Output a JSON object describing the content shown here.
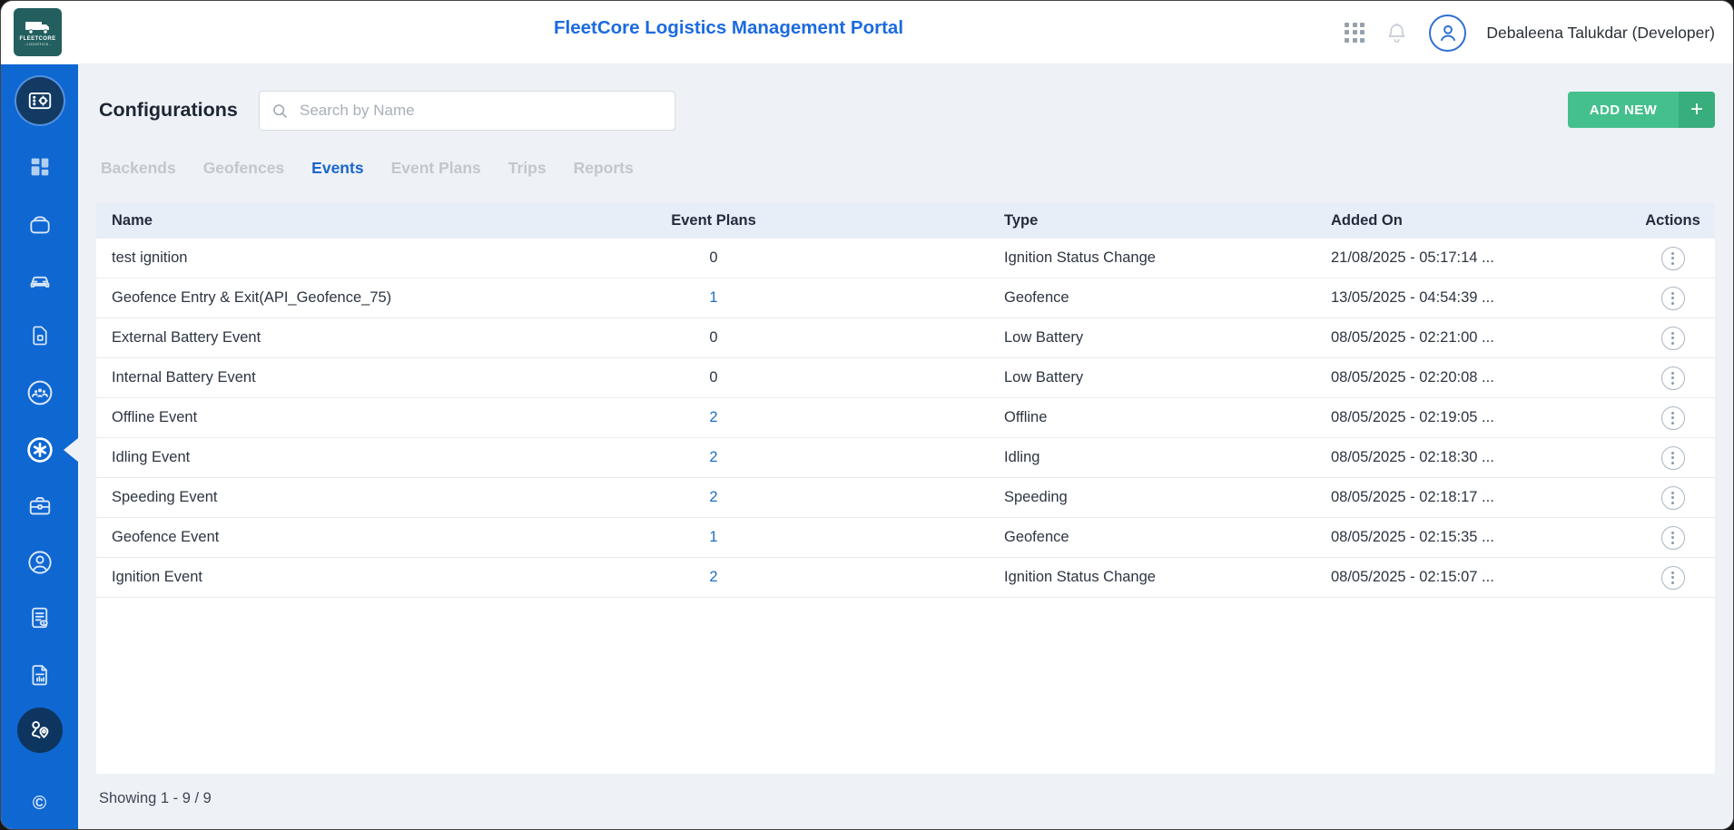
{
  "header": {
    "title": "FleetCore Logistics Management Portal",
    "logo": {
      "line1": "FLEETCORE",
      "line2": "- LOGISTICS -",
      "icon": "truck-icon"
    },
    "user_name": "Debaleena Talukdar (Developer)"
  },
  "sidebar": {
    "items": [
      {
        "name": "configurations",
        "icon": "settings-panel-icon",
        "variant": "dark-circle"
      },
      {
        "name": "dashboard",
        "icon": "dashboard-icon"
      },
      {
        "name": "devices",
        "icon": "device-icon"
      },
      {
        "name": "vehicles",
        "icon": "car-icon"
      },
      {
        "name": "sim-cards",
        "icon": "sim-card-icon"
      },
      {
        "name": "teams",
        "icon": "people-group-icon"
      },
      {
        "name": "events",
        "icon": "asterisk-circle-icon",
        "active": true
      },
      {
        "name": "toolbox",
        "icon": "toolbox-icon"
      },
      {
        "name": "drivers",
        "icon": "person-circle-icon"
      },
      {
        "name": "audit-logs",
        "icon": "document-eye-icon"
      },
      {
        "name": "reports",
        "icon": "document-chart-icon"
      },
      {
        "name": "trips",
        "icon": "route-pins-icon",
        "variant": "dark-circle2"
      },
      {
        "name": "copyright",
        "icon": "copyright-icon",
        "glyph": "©"
      }
    ]
  },
  "page": {
    "heading": "Configurations",
    "search": {
      "placeholder": "Search by Name",
      "value": ""
    },
    "add_button": {
      "label": "ADD NEW",
      "plus": "+"
    },
    "tabs": [
      {
        "label": "Backends",
        "active": false
      },
      {
        "label": "Geofences",
        "active": false
      },
      {
        "label": "Events",
        "active": true
      },
      {
        "label": "Event Plans",
        "active": false
      },
      {
        "label": "Trips",
        "active": false
      },
      {
        "label": "Reports",
        "active": false
      }
    ],
    "table": {
      "columns": [
        "Name",
        "Event Plans",
        "Type",
        "Added On",
        "Actions"
      ],
      "rows": [
        {
          "name": "test ignition",
          "event_plans": "0",
          "plans_is_link": false,
          "type": "Ignition Status Change",
          "added_on": "21/08/2025 - 05:17:14 ..."
        },
        {
          "name": "Geofence Entry & Exit(API_Geofence_75)",
          "event_plans": "1",
          "plans_is_link": true,
          "type": "Geofence",
          "added_on": "13/05/2025 - 04:54:39 ..."
        },
        {
          "name": "External Battery Event",
          "event_plans": "0",
          "plans_is_link": false,
          "type": "Low Battery",
          "added_on": "08/05/2025 - 02:21:00 ..."
        },
        {
          "name": "Internal Battery Event",
          "event_plans": "0",
          "plans_is_link": false,
          "type": "Low Battery",
          "added_on": "08/05/2025 - 02:20:08 ..."
        },
        {
          "name": "Offline Event",
          "event_plans": "2",
          "plans_is_link": true,
          "type": "Offline",
          "added_on": "08/05/2025 - 02:19:05 ..."
        },
        {
          "name": "Idling Event",
          "event_plans": "2",
          "plans_is_link": true,
          "type": "Idling",
          "added_on": "08/05/2025 - 02:18:30 ..."
        },
        {
          "name": "Speeding Event",
          "event_plans": "2",
          "plans_is_link": true,
          "type": "Speeding",
          "added_on": "08/05/2025 - 02:18:17 ..."
        },
        {
          "name": "Geofence Event",
          "event_plans": "1",
          "plans_is_link": true,
          "type": "Geofence",
          "added_on": "08/05/2025 - 02:15:35 ..."
        },
        {
          "name": "Ignition Event",
          "event_plans": "2",
          "plans_is_link": true,
          "type": "Ignition Status Change",
          "added_on": "08/05/2025 - 02:15:07 ..."
        }
      ]
    },
    "footer_summary": "Showing 1 - 9 / 9"
  },
  "colors": {
    "sidebar_blue": "#0f67d2",
    "dark_navy_circle": "#123a63",
    "title_blue": "#1b6be0",
    "active_tab_blue": "#1a66cc",
    "link_blue": "#1c6ec9",
    "add_button_green": "#44c08c",
    "add_button_green_dark": "#38ae7c",
    "table_header_bg": "#e8eef7",
    "content_bg": "#eef1f6",
    "logo_teal": "#235f5f"
  }
}
